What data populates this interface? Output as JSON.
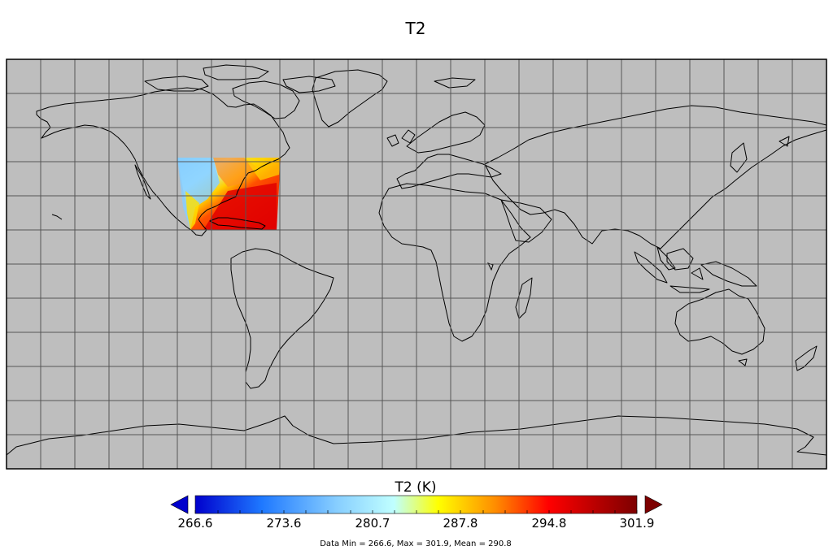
{
  "figure": {
    "title": "T2",
    "colorbar_label": "T2 (K)",
    "colorbar_ticks": [
      "266.6",
      "273.6",
      "280.7",
      "287.8",
      "294.8",
      "301.9"
    ],
    "stats": "Data Min = 266.6, Max = 301.9, Mean = 290.8"
  },
  "map": {
    "projection": "cylindrical",
    "lon_range": [
      -180,
      180
    ],
    "lat_range": [
      -90,
      90
    ],
    "grid_spacing_deg": 15,
    "ocean_fill": "#bebebe",
    "coastline_color": "#000000",
    "gridline_color": "#555555"
  },
  "field": {
    "variable": "T2",
    "units": "K",
    "lon_range": [
      -105,
      -59
    ],
    "lat_range": [
      16,
      45
    ],
    "min": 266.6,
    "max": 301.9,
    "mean": 290.8,
    "colormap": [
      "#0000cd",
      "#1e78ff",
      "#87ceff",
      "#c0ffff",
      "#ffff00",
      "#ff8c00",
      "#ff0000",
      "#b00000",
      "#7d0000"
    ],
    "under_color": "#0000cd",
    "over_color": "#7d0000"
  }
}
